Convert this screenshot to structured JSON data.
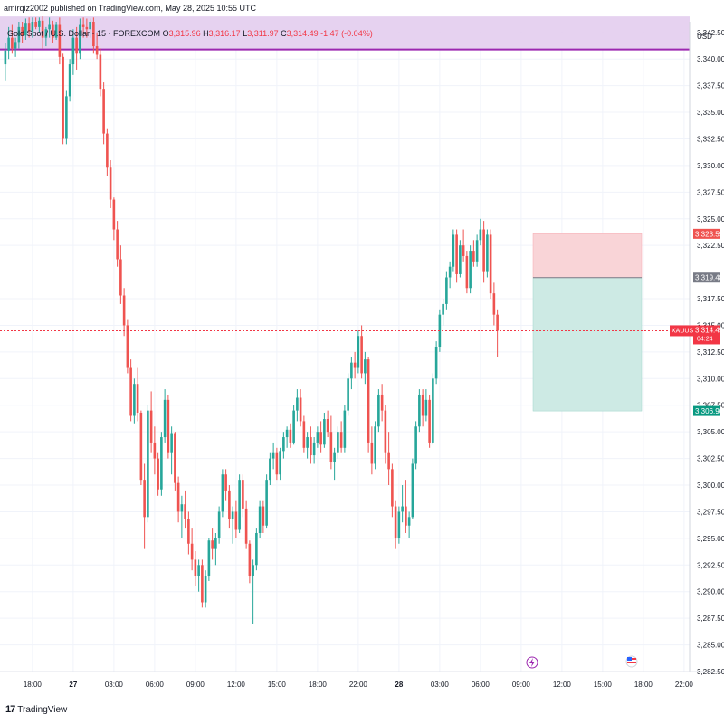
{
  "header": {
    "published": "amirqiz2002 published on TradingView.com, May 28, 2025 10:55 UTC"
  },
  "legend": {
    "symbol": "Gold Spot / U.S. Dollar · 15 · FOREXCOM",
    "open_label": "O",
    "open": "3,315.96",
    "high_label": "H",
    "high": "3,316.17",
    "low_label": "L",
    "low": "3,311.97",
    "close_label": "C",
    "close": "3,314.49",
    "change": "-1.47 (-0.04%)"
  },
  "currency": "USD",
  "price_tags": {
    "stop": "3,323.59",
    "entry": "3,319.48",
    "symbol_name": "XAUUSD",
    "last": "3,314.49",
    "countdown": "04:24",
    "target": "3,306.96"
  },
  "branding": {
    "logo_mark": "17",
    "logo_text": "TradingView"
  },
  "colors": {
    "bull": "#26a69a",
    "bear": "#ef5350",
    "zone": "#e3cdee",
    "zone_line": "#9c27b0",
    "stop_zone": "#f9d4d7",
    "target_zone": "#cdeae4",
    "entry_tag": "#787b86",
    "last_line": "#f23645"
  },
  "icons": {
    "lightning": "lightning-icon",
    "flag": "us-flag-icon"
  },
  "chart_data": {
    "type": "candlestick",
    "y_ticks": [
      "3,342.50",
      "3,340.00",
      "3,337.50",
      "3,335.00",
      "3,332.50",
      "3,330.00",
      "3,327.50",
      "3,325.00",
      "3,322.50",
      "3,317.50",
      "3,315.00",
      "3,312.50",
      "3,310.00",
      "3,307.50",
      "3,305.00",
      "3,302.50",
      "3,300.00",
      "3,297.50",
      "3,295.00",
      "3,292.50",
      "3,290.00",
      "3,287.50",
      "3,285.00",
      "3,282.50"
    ],
    "y_tick_values": [
      3342.5,
      3340,
      3337.5,
      3335,
      3332.5,
      3330,
      3327.5,
      3325,
      3322.5,
      3317.5,
      3315,
      3312.5,
      3310,
      3307.5,
      3305,
      3302.5,
      3300,
      3297.5,
      3295,
      3292.5,
      3290,
      3287.5,
      3285,
      3282.5
    ],
    "ylim": [
      3282.5,
      3343.5
    ],
    "x_ticks": [
      "18:00",
      "27",
      "03:00",
      "06:00",
      "09:00",
      "12:00",
      "15:00",
      "18:00",
      "22:00",
      "28",
      "03:00",
      "06:00",
      "09:00",
      "12:00",
      "15:00",
      "18:00",
      "22:00"
    ],
    "x_tick_bold": [
      false,
      true,
      false,
      false,
      false,
      false,
      false,
      false,
      false,
      true,
      false,
      false,
      false,
      false,
      false,
      false,
      false
    ],
    "x_tick_bars": [
      8,
      20,
      32,
      44,
      56,
      68,
      80,
      92,
      104,
      116,
      128,
      140,
      152,
      164,
      176,
      188,
      200
    ],
    "resistance_zone": [
      3340.9,
      3344.0
    ],
    "trade": {
      "stop": 3323.59,
      "entry": 3319.48,
      "target": 3306.96,
      "start_bar": 156,
      "end_bar": 187
    },
    "last_price": 3314.49,
    "candles": [
      [
        3339.5,
        3341.5,
        3338.0,
        3340.8
      ],
      [
        3340.8,
        3343.0,
        3340.0,
        3342.0
      ],
      [
        3342.0,
        3343.2,
        3340.5,
        3341.0
      ],
      [
        3341.0,
        3342.0,
        3340.2,
        3341.6
      ],
      [
        3341.6,
        3343.5,
        3341.0,
        3343.0
      ],
      [
        3343.0,
        3343.5,
        3341.5,
        3342.2
      ],
      [
        3342.2,
        3343.8,
        3341.8,
        3343.4
      ],
      [
        3343.4,
        3343.9,
        3342.0,
        3342.6
      ],
      [
        3342.6,
        3343.9,
        3342.0,
        3343.5
      ],
      [
        3343.5,
        3343.9,
        3342.8,
        3343.0
      ],
      [
        3343.0,
        3343.9,
        3342.5,
        3343.6
      ],
      [
        3343.6,
        3344.0,
        3341.0,
        3342.0
      ],
      [
        3342.0,
        3343.0,
        3341.2,
        3342.8
      ],
      [
        3342.8,
        3343.9,
        3342.0,
        3343.2
      ],
      [
        3343.2,
        3343.6,
        3341.5,
        3342.0
      ],
      [
        3342.0,
        3343.5,
        3341.8,
        3343.2
      ],
      [
        3343.2,
        3343.9,
        3339.5,
        3340.2
      ],
      [
        3340.2,
        3340.5,
        3332.0,
        3332.5
      ],
      [
        3332.5,
        3337.0,
        3332.0,
        3336.5
      ],
      [
        3336.5,
        3340.0,
        3336.0,
        3339.5
      ],
      [
        3339.5,
        3342.8,
        3338.5,
        3342.0
      ],
      [
        3342.0,
        3343.0,
        3339.0,
        3340.5
      ],
      [
        3340.5,
        3343.8,
        3340.0,
        3343.2
      ],
      [
        3343.2,
        3343.9,
        3342.0,
        3343.0
      ],
      [
        3343.0,
        3343.8,
        3342.0,
        3342.8
      ],
      [
        3342.8,
        3343.8,
        3342.0,
        3343.5
      ],
      [
        3343.5,
        3343.9,
        3340.5,
        3341.2
      ],
      [
        3341.2,
        3342.5,
        3340.0,
        3340.4
      ],
      [
        3340.4,
        3341.0,
        3336.5,
        3337.2
      ],
      [
        3337.2,
        3337.8,
        3332.0,
        3333.0
      ],
      [
        3333.0,
        3333.5,
        3329.0,
        3329.8
      ],
      [
        3329.8,
        3330.5,
        3326.0,
        3326.8
      ],
      [
        3326.8,
        3327.0,
        3323.0,
        3324.0
      ],
      [
        3324.0,
        3324.8,
        3320.5,
        3321.2
      ],
      [
        3321.2,
        3322.5,
        3317.0,
        3317.8
      ],
      [
        3317.8,
        3318.5,
        3314.0,
        3315.0
      ],
      [
        3315.0,
        3315.5,
        3310.5,
        3311.0
      ],
      [
        3311.0,
        3311.8,
        3306.0,
        3306.5
      ],
      [
        3306.5,
        3310.0,
        3305.8,
        3309.5
      ],
      [
        3309.5,
        3311.0,
        3306.0,
        3306.8
      ],
      [
        3306.8,
        3307.0,
        3300.0,
        3300.5
      ],
      [
        3300.5,
        3302.0,
        3294.0,
        3297.0
      ],
      [
        3297.0,
        3307.5,
        3296.5,
        3307.0
      ],
      [
        3307.0,
        3308.8,
        3303.0,
        3304.0
      ],
      [
        3304.0,
        3305.5,
        3301.0,
        3302.5
      ],
      [
        3302.5,
        3303.0,
        3299.0,
        3299.6
      ],
      [
        3299.6,
        3305.0,
        3299.0,
        3304.5
      ],
      [
        3304.5,
        3309.0,
        3304.0,
        3308.0
      ],
      [
        3308.0,
        3308.5,
        3302.5,
        3303.0
      ],
      [
        3303.0,
        3305.5,
        3301.0,
        3304.8
      ],
      [
        3304.8,
        3305.0,
        3299.5,
        3300.2
      ],
      [
        3300.2,
        3300.8,
        3296.5,
        3297.5
      ],
      [
        3297.5,
        3299.0,
        3295.0,
        3298.2
      ],
      [
        3298.2,
        3299.5,
        3296.0,
        3296.8
      ],
      [
        3296.8,
        3297.5,
        3293.5,
        3294.5
      ],
      [
        3294.5,
        3296.0,
        3292.0,
        3293.0
      ],
      [
        3293.0,
        3293.8,
        3290.5,
        3291.5
      ],
      [
        3291.5,
        3293.0,
        3290.0,
        3292.5
      ],
      [
        3292.5,
        3293.0,
        3288.5,
        3289.0
      ],
      [
        3289.0,
        3292.0,
        3288.5,
        3291.5
      ],
      [
        3291.5,
        3295.0,
        3291.0,
        3294.8
      ],
      [
        3294.8,
        3296.0,
        3293.0,
        3294.0
      ],
      [
        3294.0,
        3295.5,
        3292.5,
        3295.0
      ],
      [
        3295.0,
        3298.0,
        3294.5,
        3297.5
      ],
      [
        3297.5,
        3301.5,
        3297.0,
        3301.0
      ],
      [
        3301.0,
        3301.5,
        3298.5,
        3299.5
      ],
      [
        3299.5,
        3300.0,
        3296.0,
        3296.8
      ],
      [
        3296.8,
        3298.0,
        3294.5,
        3297.5
      ],
      [
        3297.5,
        3298.5,
        3295.0,
        3295.8
      ],
      [
        3295.8,
        3301.0,
        3295.5,
        3300.5
      ],
      [
        3300.5,
        3301.0,
        3297.0,
        3297.8
      ],
      [
        3297.8,
        3298.5,
        3294.0,
        3294.5
      ],
      [
        3294.5,
        3294.8,
        3290.8,
        3291.5
      ],
      [
        3291.5,
        3293.0,
        3287.0,
        3292.5
      ],
      [
        3292.5,
        3296.0,
        3292.0,
        3295.5
      ],
      [
        3295.5,
        3298.5,
        3295.0,
        3298.0
      ],
      [
        3298.0,
        3298.5,
        3295.5,
        3296.2
      ],
      [
        3296.2,
        3301.0,
        3296.0,
        3300.5
      ],
      [
        3300.5,
        3303.0,
        3300.0,
        3302.5
      ],
      [
        3302.5,
        3304.0,
        3301.5,
        3303.0
      ],
      [
        3303.0,
        3303.5,
        3300.5,
        3301.0
      ],
      [
        3301.0,
        3303.5,
        3300.5,
        3303.2
      ],
      [
        3303.2,
        3305.0,
        3302.5,
        3304.5
      ],
      [
        3304.5,
        3305.5,
        3303.5,
        3305.2
      ],
      [
        3305.2,
        3305.8,
        3303.5,
        3304.0
      ],
      [
        3304.0,
        3307.5,
        3303.8,
        3307.0
      ],
      [
        3307.0,
        3309.0,
        3306.0,
        3308.2
      ],
      [
        3308.2,
        3309.0,
        3305.5,
        3306.0
      ],
      [
        3306.0,
        3306.5,
        3303.0,
        3303.5
      ],
      [
        3303.5,
        3305.0,
        3302.5,
        3304.5
      ],
      [
        3304.5,
        3305.5,
        3302.0,
        3302.8
      ],
      [
        3302.8,
        3304.5,
        3302.0,
        3304.0
      ],
      [
        3304.0,
        3305.5,
        3303.5,
        3305.0
      ],
      [
        3305.0,
        3306.0,
        3303.0,
        3303.8
      ],
      [
        3303.8,
        3306.8,
        3303.5,
        3306.2
      ],
      [
        3306.2,
        3307.0,
        3304.5,
        3305.0
      ],
      [
        3305.0,
        3306.5,
        3301.5,
        3302.2
      ],
      [
        3302.2,
        3303.5,
        3300.5,
        3303.0
      ],
      [
        3303.0,
        3305.5,
        3302.5,
        3305.0
      ],
      [
        3305.0,
        3306.0,
        3303.0,
        3303.5
      ],
      [
        3303.5,
        3307.5,
        3303.0,
        3307.0
      ],
      [
        3307.0,
        3310.5,
        3306.5,
        3310.0
      ],
      [
        3310.0,
        3312.0,
        3309.0,
        3311.5
      ],
      [
        3311.5,
        3312.5,
        3310.0,
        3311.0
      ],
      [
        3311.0,
        3314.5,
        3310.5,
        3314.0
      ],
      [
        3314.0,
        3315.0,
        3310.0,
        3310.5
      ],
      [
        3310.5,
        3312.5,
        3309.5,
        3311.8
      ],
      [
        3311.8,
        3312.0,
        3303.0,
        3304.0
      ],
      [
        3304.0,
        3305.5,
        3301.0,
        3302.0
      ],
      [
        3302.0,
        3306.0,
        3301.5,
        3305.5
      ],
      [
        3305.5,
        3309.0,
        3305.0,
        3308.5
      ],
      [
        3308.5,
        3309.5,
        3306.0,
        3307.0
      ],
      [
        3307.0,
        3307.5,
        3302.0,
        3303.0
      ],
      [
        3303.0,
        3305.0,
        3300.0,
        3301.5
      ],
      [
        3301.5,
        3302.0,
        3297.0,
        3298.0
      ],
      [
        3298.0,
        3298.5,
        3294.0,
        3295.0
      ],
      [
        3295.0,
        3298.0,
        3294.5,
        3297.5
      ],
      [
        3297.5,
        3300.0,
        3296.5,
        3298.0
      ],
      [
        3298.0,
        3300.5,
        3295.5,
        3296.2
      ],
      [
        3296.2,
        3297.5,
        3295.0,
        3297.0
      ],
      [
        3297.0,
        3302.5,
        3296.8,
        3302.0
      ],
      [
        3302.0,
        3306.0,
        3301.5,
        3305.5
      ],
      [
        3305.5,
        3309.0,
        3305.0,
        3308.5
      ],
      [
        3308.5,
        3309.0,
        3305.5,
        3306.5
      ],
      [
        3306.5,
        3309.0,
        3306.0,
        3308.0
      ],
      [
        3308.0,
        3308.5,
        3303.5,
        3304.0
      ],
      [
        3304.0,
        3310.5,
        3303.8,
        3310.0
      ],
      [
        3310.0,
        3313.5,
        3309.5,
        3313.0
      ],
      [
        3313.0,
        3316.5,
        3312.5,
        3316.0
      ],
      [
        3316.0,
        3317.5,
        3315.0,
        3317.0
      ],
      [
        3317.0,
        3320.0,
        3316.5,
        3319.5
      ],
      [
        3319.5,
        3321.0,
        3318.5,
        3320.5
      ],
      [
        3320.5,
        3324.0,
        3320.0,
        3323.5
      ],
      [
        3323.5,
        3324.0,
        3319.0,
        3319.8
      ],
      [
        3319.8,
        3323.0,
        3319.5,
        3322.5
      ],
      [
        3322.5,
        3324.0,
        3321.0,
        3321.5
      ],
      [
        3321.5,
        3322.0,
        3318.0,
        3318.5
      ],
      [
        3318.5,
        3322.5,
        3318.0,
        3322.0
      ],
      [
        3322.0,
        3323.0,
        3320.5,
        3321.0
      ],
      [
        3321.0,
        3323.5,
        3320.5,
        3323.0
      ],
      [
        3323.0,
        3325.0,
        3322.5,
        3324.0
      ],
      [
        3324.0,
        3324.8,
        3319.0,
        3320.0
      ],
      [
        3320.0,
        3324.0,
        3319.5,
        3323.5
      ],
      [
        3323.5,
        3324.0,
        3317.5,
        3318.0
      ],
      [
        3318.0,
        3319.0,
        3315.0,
        3316.0
      ],
      [
        3316.0,
        3316.5,
        3312.0,
        3314.49
      ]
    ]
  }
}
